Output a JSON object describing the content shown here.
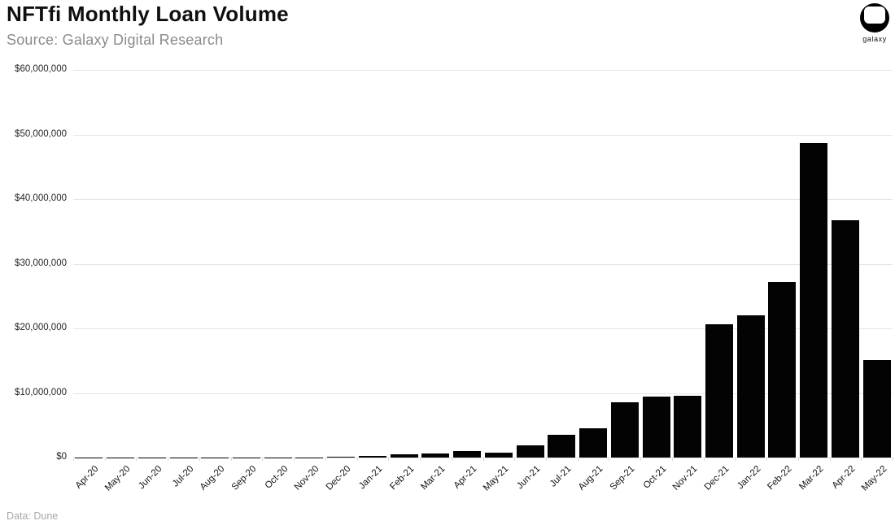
{
  "header": {
    "title": "NFTfi Monthly Loan Volume",
    "source": "Source: Galaxy Digital Research"
  },
  "logo": {
    "brand": "galaxy"
  },
  "footer": {
    "credit": "Data: Dune"
  },
  "chart_data": {
    "type": "bar",
    "title": "NFTfi Monthly Loan Volume",
    "xlabel": "",
    "ylabel": "",
    "ylim": [
      0,
      60000000
    ],
    "y_tick_interval": 10000000,
    "y_tick_labels_top_to_bottom": [
      "$60,000,000",
      "$50,000,000",
      "$40,000,000",
      "$30,000,000",
      "$20,000,000",
      "$10,000,000",
      "$0"
    ],
    "grid": true,
    "legend": false,
    "bar_color": "#000000",
    "grid_color": "#e5e5e5",
    "categories": [
      "Apr-20",
      "May-20",
      "Jun-20",
      "Jul-20",
      "Aug-20",
      "Sep-20",
      "Oct-20",
      "Nov-20",
      "Dec-20",
      "Jan-21",
      "Feb-21",
      "Mar-21",
      "Apr-21",
      "May-21",
      "Jun-21",
      "Jul-21",
      "Aug-21",
      "Sep-21",
      "Oct-21",
      "Nov-21",
      "Dec-21",
      "Jan-22",
      "Feb-22",
      "Mar-22",
      "Apr-22",
      "May-22"
    ],
    "values": [
      10000,
      15000,
      20000,
      25000,
      30000,
      40000,
      40000,
      50000,
      80000,
      220000,
      470000,
      650000,
      1000000,
      700000,
      1900000,
      3500000,
      4500000,
      8500000,
      9400000,
      9600000,
      20600000,
      22000000,
      27200000,
      48700000,
      36700000,
      15100000
    ]
  }
}
